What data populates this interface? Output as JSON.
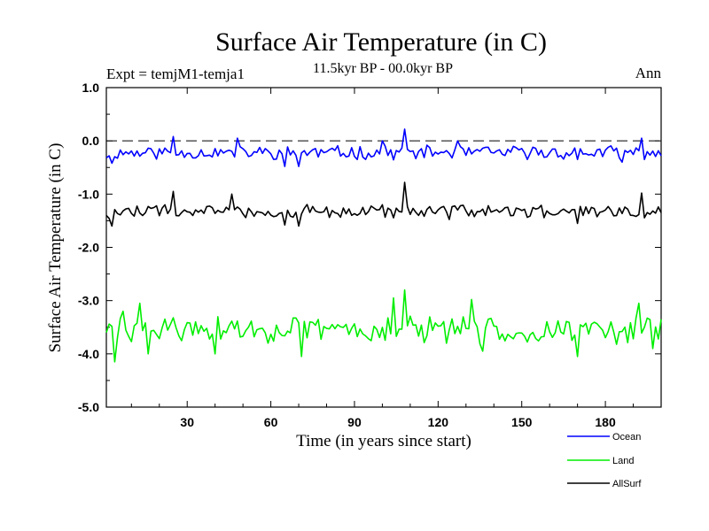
{
  "chart_data": {
    "type": "line",
    "title": "Surface Air Temperature (in C)",
    "subtitle": "11.5kyr BP - 00.0kyr BP",
    "experiment_label": "Expt = temjM1-temja1",
    "period_label": "Ann",
    "xlabel": "Time (in years since start)",
    "ylabel": "Surface Air Temperature (in C)",
    "xlim": [
      1,
      200
    ],
    "ylim": [
      -5.0,
      1.0
    ],
    "x_ticks": [
      30,
      60,
      90,
      120,
      150,
      180
    ],
    "x_tick_labels": [
      "30",
      "60",
      "90",
      "120",
      "150",
      "180"
    ],
    "y_ticks": [
      1.0,
      0.0,
      -1.0,
      -2.0,
      -3.0,
      -4.0,
      -5.0
    ],
    "y_tick_labels": [
      "1.0",
      "0.0",
      "-1.0",
      "-2.0",
      "-3.0",
      "-4.0",
      "-5.0"
    ],
    "reference_line": 0.0,
    "series": [
      {
        "name": "Ocean",
        "color": "#0000ff",
        "mean": -0.22,
        "amplitude": 0.11,
        "seed": 11,
        "anchors": [
          [
            1,
            -0.32
          ],
          [
            3,
            -0.42
          ],
          [
            20,
            -0.15
          ],
          [
            25,
            0.08
          ],
          [
            48,
            0.05
          ],
          [
            65,
            -0.48
          ],
          [
            70,
            -0.48
          ],
          [
            100,
            0.0
          ],
          [
            108,
            0.22
          ],
          [
            113,
            -0.2
          ],
          [
            127,
            0.0
          ],
          [
            170,
            -0.35
          ],
          [
            186,
            -0.4
          ],
          [
            193,
            0.05
          ],
          [
            200,
            -0.28
          ]
        ]
      },
      {
        "name": "Land",
        "color": "#00ee00",
        "mean": -3.55,
        "amplitude": 0.22,
        "seed": 29,
        "anchors": [
          [
            1,
            -3.6
          ],
          [
            4,
            -4.15
          ],
          [
            7,
            -3.2
          ],
          [
            13,
            -3.05
          ],
          [
            16,
            -4.0
          ],
          [
            40,
            -4.0
          ],
          [
            71,
            -4.05
          ],
          [
            104,
            -2.95
          ],
          [
            108,
            -2.8
          ],
          [
            132,
            -2.98
          ],
          [
            136,
            -3.95
          ],
          [
            170,
            -4.05
          ],
          [
            192,
            -3.05
          ],
          [
            197,
            -3.9
          ],
          [
            200,
            -3.35
          ]
        ]
      },
      {
        "name": "AllSurf",
        "color": "#000000",
        "mean": -1.33,
        "amplitude": 0.12,
        "seed": 47,
        "anchors": [
          [
            1,
            -1.4
          ],
          [
            3,
            -1.6
          ],
          [
            25,
            -0.95
          ],
          [
            46,
            -1.0
          ],
          [
            65,
            -1.58
          ],
          [
            70,
            -1.6
          ],
          [
            100,
            -1.2
          ],
          [
            108,
            -0.78
          ],
          [
            113,
            -1.4
          ],
          [
            170,
            -1.55
          ],
          [
            193,
            -0.98
          ],
          [
            200,
            -1.35
          ]
        ]
      }
    ]
  }
}
